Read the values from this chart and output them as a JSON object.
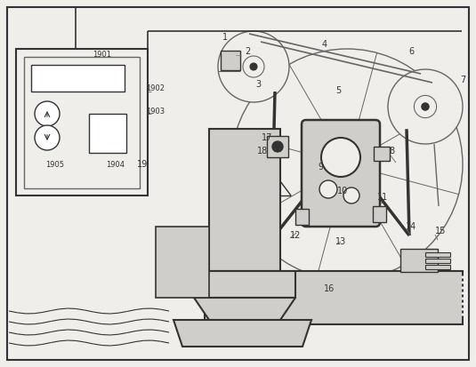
{
  "bg": "#f0eeeb",
  "lc": "#666666",
  "dc": "#333333",
  "white": "#ffffff",
  "gray_fill": "#e8e6e3",
  "mid_gray": "#d0ceca"
}
